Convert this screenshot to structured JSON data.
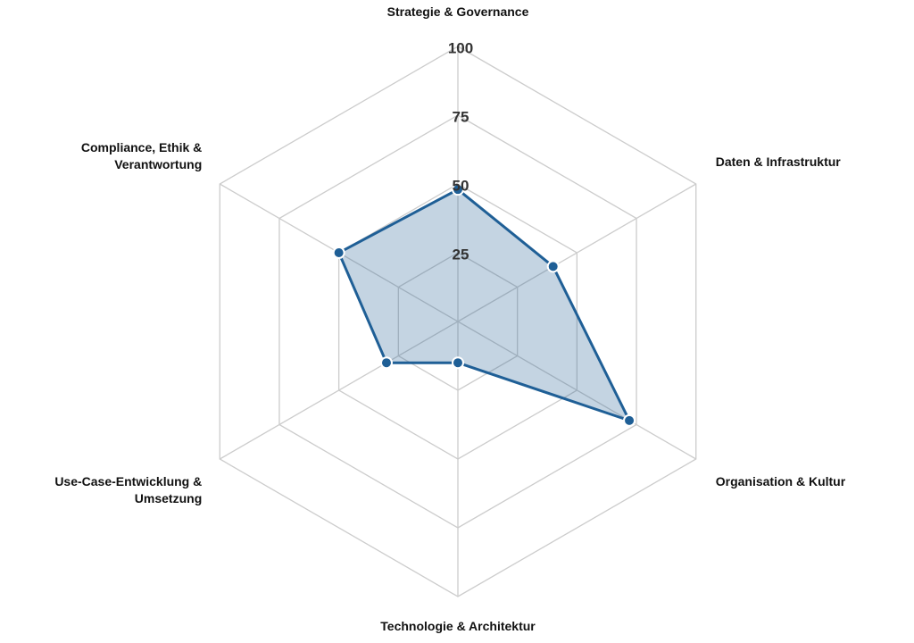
{
  "chart_data": {
    "type": "radar",
    "axes": [
      {
        "label": [
          "Strategie & Governance"
        ],
        "value": 48
      },
      {
        "label": [
          "Daten & Infrastruktur"
        ],
        "value": 40
      },
      {
        "label": [
          "Organisation & Kultur"
        ],
        "value": 72
      },
      {
        "label": [
          "Technologie & Architektur"
        ],
        "value": 15
      },
      {
        "label": [
          "Use-Case-Entwicklung &",
          "Umsetzung"
        ],
        "value": 30
      },
      {
        "label": [
          "Compliance, Ethik &",
          "Verantwortung"
        ],
        "value": 50
      }
    ],
    "ticks": [
      "25",
      "50",
      "75",
      "100"
    ],
    "range": [
      0,
      100
    ],
    "series_color": "#1f5f96",
    "fill_color": "#2a6496",
    "grid_color": "#cccccc"
  }
}
